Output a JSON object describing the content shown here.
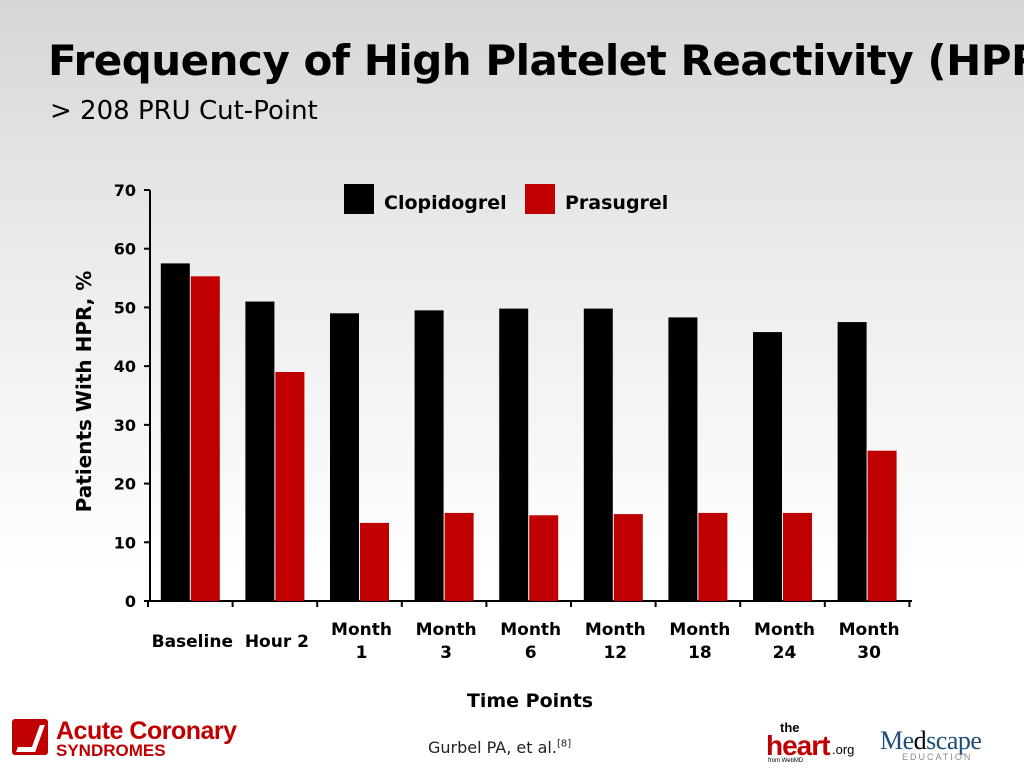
{
  "slide": {
    "title": "Frequency of High Platelet Reactivity (HPR)",
    "subtitle": "> 208 PRU Cut-Point"
  },
  "chart_data": {
    "type": "bar",
    "categories": [
      [
        "Baseline"
      ],
      [
        "Hour 2"
      ],
      [
        "Month",
        "1"
      ],
      [
        "Month",
        "3"
      ],
      [
        "Month",
        "6"
      ],
      [
        "Month",
        "12"
      ],
      [
        "Month",
        "18"
      ],
      [
        "Month",
        "24"
      ],
      [
        "Month",
        "30"
      ]
    ],
    "series": [
      {
        "name": "Clopidogrel",
        "color": "#000000",
        "values": [
          57.5,
          51,
          49,
          49.5,
          49.8,
          49.8,
          48.3,
          45.8,
          47.5
        ]
      },
      {
        "name": "Prasugrel",
        "color": "#c00000",
        "values": [
          55.3,
          39,
          13.3,
          15,
          14.6,
          14.8,
          15,
          15,
          25.6
        ]
      }
    ],
    "xlabel": "Time Points",
    "ylabel": "Patients With HPR, %",
    "ylim": [
      0,
      70
    ],
    "yticks": [
      "0",
      "10",
      "20",
      "30",
      "40",
      "50",
      "60",
      "70"
    ],
    "grid": false,
    "legend_position": "top-center"
  },
  "footer": {
    "logo_line1": "Acute Coronary",
    "logo_line2": "SYNDROMES",
    "citation": "Gurbel PA, et al.",
    "citation_ref": "[8]",
    "theheart_the": "the",
    "theheart_heart": "heart",
    "theheart_org": ".org",
    "theheart_from": "from WebMD",
    "medscape_word_1": "Me",
    "medscape_word_2": "d",
    "medscape_word_3": "scape",
    "medscape_sub": "EDUCATION"
  }
}
